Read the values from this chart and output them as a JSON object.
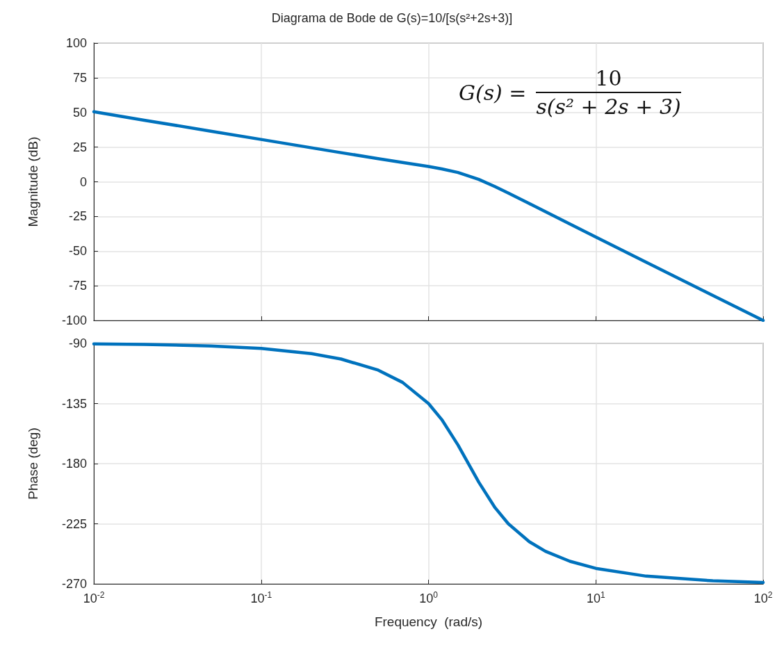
{
  "chart_data": [
    {
      "type": "line",
      "title": "Diagrama de Bode de G(s)=10/[s(s²+2s+3)]",
      "ylabel": "Magnitude (dB)",
      "annotations": [
        "G(s) =",
        "10",
        "s(s² + 2s + 3)"
      ],
      "x": [
        0.01,
        0.02,
        0.05,
        0.1,
        0.2,
        0.3,
        0.5,
        0.7,
        1,
        1.2,
        1.5,
        2,
        2.5,
        3,
        4,
        5,
        7,
        10,
        20,
        50,
        100
      ],
      "series": [
        {
          "color": "#0072bd",
          "values": [
            50.5,
            44.4,
            36.5,
            30.5,
            24.5,
            21.0,
            16.7,
            13.9,
            11.0,
            9.3,
            6.7,
            1.7,
            -3.5,
            -8.1,
            -15.7,
            -21.6,
            -30.5,
            -39.9,
            -58.0,
            -81.9,
            -100.0
          ]
        }
      ],
      "log": "x",
      "xlim": [
        0.01,
        100
      ],
      "xticks": [
        {
          "value": 0.01,
          "label": null
        },
        {
          "value": 0.1,
          "label": null
        },
        {
          "value": 1,
          "label": null
        },
        {
          "value": 10,
          "label": null
        },
        {
          "value": 100,
          "label": null
        }
      ],
      "ylim": [
        -100,
        100
      ],
      "yticks": [
        -100,
        -75,
        -50,
        -25,
        0,
        25,
        50,
        75,
        100
      ],
      "grid": true,
      "tick_labels": "y"
    },
    {
      "type": "line",
      "xlabel": "Frequency  (rad/s)",
      "ylabel": "Phase (deg)",
      "x": [
        0.01,
        0.02,
        0.05,
        0.1,
        0.2,
        0.3,
        0.5,
        0.7,
        1,
        1.2,
        1.5,
        2,
        2.5,
        3,
        4,
        5,
        7,
        10,
        20,
        50,
        100
      ],
      "series": [
        {
          "color": "#0072bd",
          "values": [
            -90.4,
            -90.8,
            -91.9,
            -93.8,
            -97.7,
            -101.7,
            -110.0,
            -119.2,
            -135.0,
            -147.0,
            -166.0,
            -194.0,
            -213.0,
            -225.0,
            -238.4,
            -245.6,
            -253.1,
            -258.4,
            -264.2,
            -267.7,
            -268.9
          ]
        }
      ],
      "log": "x",
      "xlim": [
        0.01,
        100
      ],
      "xticks": [
        {
          "value": 0.01,
          "label": "10$^{-2}$"
        },
        {
          "value": 0.1,
          "label": "10$^{-1}$"
        },
        {
          "value": 1,
          "label": "10$^{0}$"
        },
        {
          "value": 10,
          "label": "10$^{1}$"
        },
        {
          "value": 100,
          "label": "10$^{2}$"
        }
      ],
      "ylim": [
        -270,
        -90
      ],
      "yticks": [
        -270,
        -225,
        -180,
        -135,
        -90
      ],
      "grid": true
    }
  ]
}
